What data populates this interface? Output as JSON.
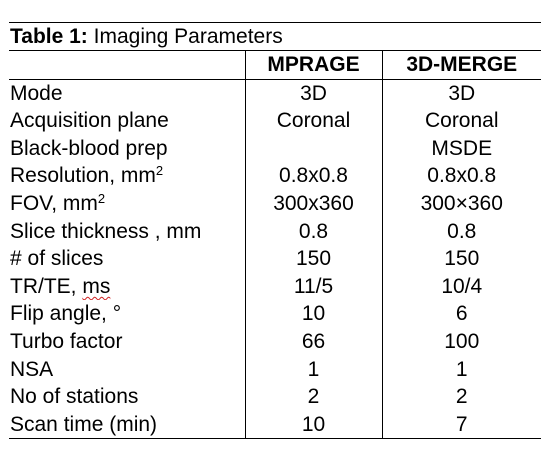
{
  "caption": {
    "label": "Table 1:",
    "title": " Imaging Parameters"
  },
  "columns": [
    "",
    "MPRAGE",
    "3D-MERGE"
  ],
  "rows": [
    {
      "param": "Mode",
      "sup": "",
      "mprage": "3D",
      "merge": "3D"
    },
    {
      "param": "Acquisition  plane",
      "sup": "",
      "mprage": "Coronal",
      "merge": "Coronal"
    },
    {
      "param": "Black-blood prep",
      "sup": "",
      "mprage": "",
      "merge": "MSDE"
    },
    {
      "param": "Resolution, mm",
      "sup": "2",
      "mprage": "0.8x0.8",
      "merge": "0.8x0.8"
    },
    {
      "param": "FOV, mm",
      "sup": "2",
      "mprage": "300x360",
      "merge": "300×360"
    },
    {
      "param": "Slice thickness , mm",
      "sup": "",
      "mprage": "0.8",
      "merge": "0.8"
    },
    {
      "param": "# of slices",
      "sup": "",
      "mprage": "150",
      "merge": "150"
    },
    {
      "param": "TR/TE, ",
      "unit_flagged": "ms",
      "sup": "",
      "mprage": "11/5",
      "merge": "10/4"
    },
    {
      "param": "Flip angle, °",
      "sup": "",
      "mprage": "10",
      "merge": "6"
    },
    {
      "param": "Turbo factor",
      "sup": "",
      "mprage": "66",
      "merge": "100"
    },
    {
      "param": "NSA",
      "sup": "",
      "mprage": "1",
      "merge": "1"
    },
    {
      "param": "No of stations",
      "sup": "",
      "mprage": "2",
      "merge": "2"
    },
    {
      "param": "Scan time (min)",
      "sup": "",
      "mprage": "10",
      "merge": "7"
    }
  ],
  "colors": {
    "text": "#000000",
    "rule": "#000000",
    "spellcheck_underline": "#d02020"
  }
}
